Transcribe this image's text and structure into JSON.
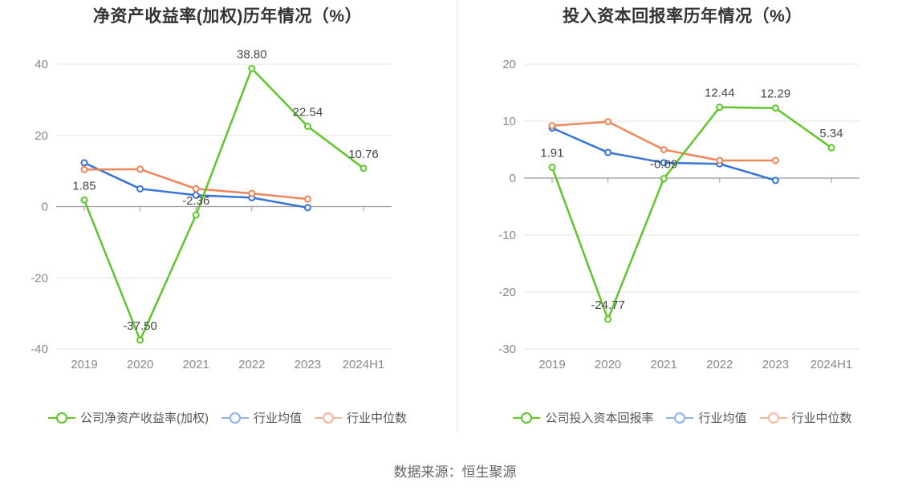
{
  "charts": [
    {
      "title": "净资产收益率(加权)历年情况（%）",
      "legend": [
        "公司净资产收益率(加权)",
        "行业均值",
        "行业中位数"
      ],
      "chart_data": {
        "type": "line",
        "title": "净资产收益率(加权)历年情况（%）",
        "categories": [
          "2019",
          "2020",
          "2021",
          "2022",
          "2023",
          "2024H1"
        ],
        "y_ticks": [
          "40",
          "20",
          "0",
          "-20",
          "-40"
        ],
        "ylim": [
          -40,
          40
        ],
        "series": [
          {
            "name": "公司净资产收益率(加权)",
            "color": "#5ec62b",
            "values": [
              1.85,
              -37.5,
              -2.36,
              38.8,
              22.54,
              10.76
            ],
            "labels": [
              "1.85",
              "-37.50",
              "-2.36",
              "38.80",
              "22.54",
              "10.76"
            ]
          },
          {
            "name": "行业均值",
            "color": "#3674d8",
            "values": [
              12.3,
              5.0,
              3.2,
              2.5,
              -0.3,
              null
            ]
          },
          {
            "name": "行业中位数",
            "color": "#f0855a",
            "values": [
              10.4,
              10.5,
              5.0,
              3.7,
              2.1,
              null
            ]
          }
        ]
      }
    },
    {
      "title": "投入资本回报率历年情况（%）",
      "legend": [
        "公司投入资本回报率",
        "行业均值",
        "行业中位数"
      ],
      "chart_data": {
        "type": "line",
        "title": "投入资本回报率历年情况（%）",
        "categories": [
          "2019",
          "2020",
          "2021",
          "2022",
          "2023",
          "2024H1"
        ],
        "y_ticks": [
          "20",
          "10",
          "0",
          "-10",
          "-20",
          "-30"
        ],
        "ylim": [
          -30,
          20
        ],
        "series": [
          {
            "name": "公司投入资本回报率",
            "color": "#5ec62b",
            "values": [
              1.91,
              -24.77,
              -0.09,
              12.44,
              12.29,
              5.34
            ],
            "labels": [
              "1.91",
              "-24.77",
              "-0.09",
              "12.44",
              "12.29",
              "5.34"
            ]
          },
          {
            "name": "行业均值",
            "color": "#3674d8",
            "values": [
              8.8,
              4.5,
              2.7,
              2.5,
              -0.4,
              null
            ]
          },
          {
            "name": "行业中位数",
            "color": "#f0855a",
            "values": [
              9.2,
              9.9,
              5.0,
              3.1,
              3.1,
              null
            ]
          }
        ]
      }
    }
  ],
  "source": "数据来源：恒生聚源"
}
